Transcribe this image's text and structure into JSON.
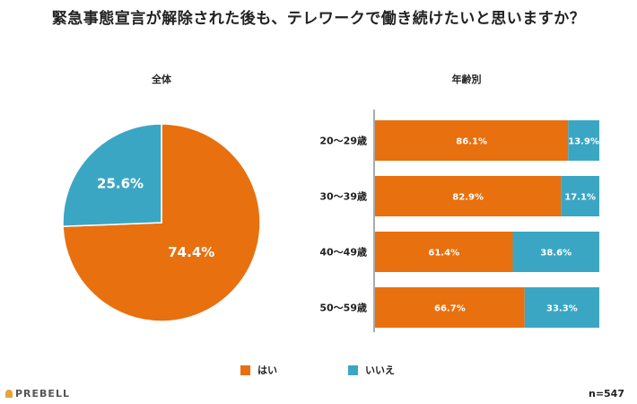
{
  "title": "緊急事態宣言が解除された後も、テレワークで働き続けたいと思いますか？",
  "colors": {
    "yes": "#e8700e",
    "no": "#3ba6c4"
  },
  "legend": {
    "yes": "はい",
    "no": "いいえ"
  },
  "sample": "n=547",
  "logo": "PREBELL",
  "chart_data": [
    {
      "type": "pie",
      "title": "全体",
      "labels": [
        "はい",
        "いいえ"
      ],
      "values": [
        74.4,
        25.6
      ],
      "value_labels": [
        "74.4%",
        "25.6%"
      ]
    },
    {
      "type": "bar",
      "orientation": "horizontal",
      "stacked": true,
      "title": "年齢別",
      "categories": [
        "20～29歳",
        "30～39歳",
        "40～49歳",
        "50～59歳"
      ],
      "series": [
        {
          "name": "はい",
          "values": [
            86.1,
            82.9,
            61.4,
            66.7
          ],
          "labels": [
            "86.1%",
            "82.9%",
            "61.4%",
            "66.7%"
          ]
        },
        {
          "name": "いいえ",
          "values": [
            13.9,
            17.1,
            38.6,
            33.3
          ],
          "labels": [
            "13.9%",
            "17.1%",
            "38.6%",
            "33.3%"
          ]
        }
      ],
      "xlim": [
        0,
        100
      ]
    }
  ]
}
